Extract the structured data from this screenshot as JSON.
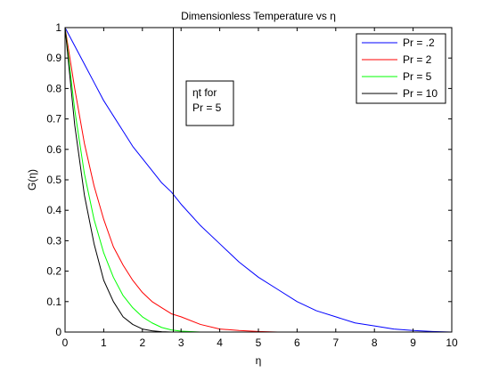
{
  "chart_data": {
    "type": "line",
    "title": "Dimensionless Temperature vs η",
    "xlabel": "η",
    "ylabel": "G(η)",
    "xlim": [
      0,
      10
    ],
    "ylim": [
      0,
      1
    ],
    "xticks": [
      0,
      1,
      2,
      3,
      4,
      5,
      6,
      7,
      8,
      9,
      10
    ],
    "xtick_labels": [
      "0",
      "1",
      "2",
      "3",
      "4",
      "5",
      "6",
      "7",
      "8",
      "9",
      "10"
    ],
    "yticks": [
      0,
      0.1,
      0.2,
      0.3,
      0.4,
      0.5,
      0.6,
      0.7,
      0.8,
      0.9,
      1
    ],
    "ytick_labels": [
      "0",
      "0.1",
      "0.2",
      "0.3",
      "0.4",
      "0.5",
      "0.6",
      "0.7",
      "0.8",
      "0.9",
      "1"
    ],
    "grid": false,
    "legend_position": "top-right",
    "x": [
      0,
      0.25,
      0.5,
      0.75,
      1,
      1.25,
      1.5,
      1.75,
      2,
      2.25,
      2.5,
      2.75,
      3,
      3.5,
      4,
      4.5,
      5,
      5.5,
      6,
      6.5,
      7,
      7.5,
      8,
      8.5,
      9,
      9.5,
      10
    ],
    "series": [
      {
        "name": "Pr = .2",
        "color": "#0000ff",
        "values": [
          1,
          0.94,
          0.88,
          0.82,
          0.76,
          0.71,
          0.66,
          0.61,
          0.57,
          0.53,
          0.49,
          0.46,
          0.42,
          0.35,
          0.29,
          0.23,
          0.18,
          0.14,
          0.1,
          0.07,
          0.05,
          0.03,
          0.02,
          0.01,
          0.005,
          0.002,
          0
        ]
      },
      {
        "name": "Pr = 2",
        "color": "#ff0000",
        "values": [
          1,
          0.8,
          0.62,
          0.48,
          0.37,
          0.28,
          0.22,
          0.17,
          0.13,
          0.1,
          0.08,
          0.06,
          0.05,
          0.025,
          0.01,
          0.005,
          0.002,
          0,
          0,
          0,
          0,
          0,
          0,
          0,
          0,
          0,
          0
        ]
      },
      {
        "name": "Pr = 5",
        "color": "#00ff00",
        "values": [
          1,
          0.73,
          0.52,
          0.37,
          0.26,
          0.18,
          0.12,
          0.08,
          0.05,
          0.03,
          0.015,
          0.007,
          0.003,
          0,
          0,
          0,
          0,
          0,
          0,
          0,
          0,
          0,
          0,
          0,
          0,
          0,
          0
        ]
      },
      {
        "name": "Pr = 10",
        "color": "#000000",
        "values": [
          1,
          0.68,
          0.45,
          0.29,
          0.17,
          0.1,
          0.05,
          0.025,
          0.01,
          0.004,
          0.001,
          0,
          0,
          0,
          0,
          0,
          0,
          0,
          0,
          0,
          0,
          0,
          0,
          0,
          0,
          0,
          0
        ]
      }
    ],
    "vertical_line": {
      "x": 2.8,
      "color": "#000000"
    },
    "annotation": {
      "lines": [
        "ηt for",
        "Pr = 5"
      ]
    }
  }
}
